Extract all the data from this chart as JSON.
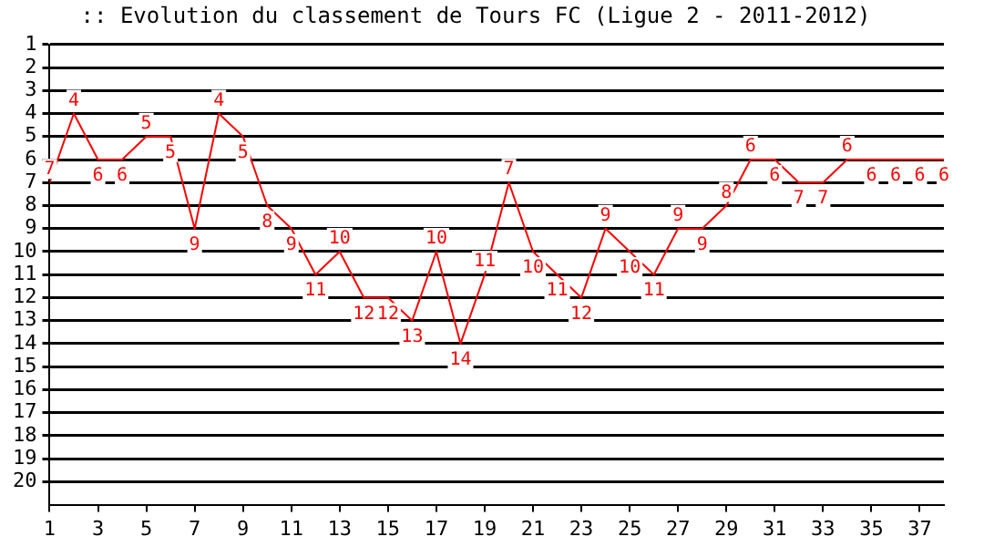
{
  "chart_data": {
    "type": "line",
    "title": ":: Evolution du classement de Tours FC (Ligue 2 - 2011-2012)",
    "x": [
      1,
      2,
      3,
      4,
      5,
      6,
      7,
      8,
      9,
      10,
      11,
      12,
      13,
      14,
      15,
      16,
      17,
      18,
      19,
      20,
      21,
      22,
      23,
      24,
      25,
      26,
      27,
      28,
      29,
      30,
      31,
      32,
      33,
      34,
      35,
      36,
      37,
      38
    ],
    "series": [
      {
        "color": "#ff0000",
        "values": [
          7,
          4,
          6,
          6,
          5,
          5,
          9,
          4,
          5,
          8,
          9,
          11,
          10,
          12,
          12,
          13,
          10,
          14,
          11,
          7,
          10,
          11,
          12,
          9,
          10,
          11,
          9,
          9,
          8,
          6,
          6,
          7,
          7,
          6,
          6,
          6,
          6,
          6
        ]
      }
    ],
    "xlim": [
      1,
      38
    ],
    "xticks": [
      1,
      3,
      5,
      7,
      9,
      11,
      13,
      15,
      17,
      19,
      21,
      23,
      25,
      27,
      29,
      31,
      33,
      35,
      37
    ],
    "ylim": [
      21,
      1
    ],
    "yticks": [
      1,
      2,
      3,
      4,
      5,
      6,
      7,
      8,
      9,
      10,
      11,
      12,
      13,
      14,
      15,
      16,
      17,
      18,
      19,
      20
    ],
    "grid": "y",
    "legend": false,
    "marker": "none",
    "line_style": "solid",
    "data_labels": true
  }
}
